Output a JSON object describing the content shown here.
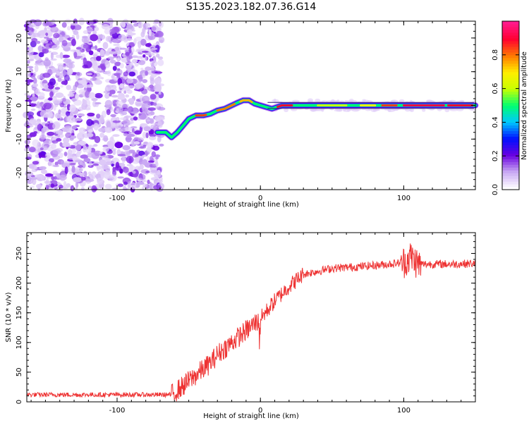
{
  "figure": {
    "title": "S135.2023.182.07.36.G14"
  },
  "chart_data": [
    {
      "type": "heatmap",
      "xlabel": "Height of straight line (km)",
      "ylabel": "Frequency (Hz)",
      "xlim": [
        -163,
        150
      ],
      "ylim": [
        -25,
        25
      ],
      "xticks": [
        -100,
        0,
        100
      ],
      "yticks": [
        -20,
        -10,
        0,
        10,
        20
      ],
      "colorbar": {
        "label": "Normalized spectral amplitude",
        "range": [
          0,
          1
        ],
        "ticks": [
          0.0,
          0.2,
          0.4,
          0.6,
          0.8
        ],
        "colormap": [
          "#ffffff",
          "#c9a9f3",
          "#6a00e0",
          "#0010ff",
          "#00c8ff",
          "#00ff70",
          "#c8ff00",
          "#ffee00",
          "#ff7a00",
          "#ff0030",
          "#ff1a8c"
        ]
      },
      "signal_track": {
        "x": [
          -72,
          -66,
          -62,
          -58,
          -54,
          -50,
          -45,
          -40,
          -35,
          -30,
          -25,
          -20,
          -16,
          -12,
          -8,
          -4,
          0,
          4,
          8,
          15,
          30,
          60,
          90,
          120,
          150
        ],
        "freq": [
          -8,
          -8,
          -9.5,
          -8,
          -6,
          -4,
          -3,
          -3,
          -2.5,
          -1.5,
          -1,
          0,
          0.8,
          1.5,
          1.5,
          0.5,
          0,
          -0.5,
          -1,
          0,
          0,
          0,
          0,
          0,
          0
        ]
      }
    },
    {
      "type": "line",
      "xlabel": "Height of straight line (km)",
      "ylabel": "SNR (10 * v/v)",
      "xlim": [
        -163,
        150
      ],
      "ylim": [
        0,
        285
      ],
      "xticks": [
        -100,
        0,
        100
      ],
      "yticks": [
        0,
        50,
        100,
        150,
        200,
        250
      ],
      "color": "#ee3333",
      "trend": {
        "x": [
          -163,
          -62,
          -55,
          -45,
          -35,
          -30,
          -20,
          -10,
          0,
          10,
          20,
          30,
          50,
          70,
          90,
          100,
          105,
          110,
          130,
          150
        ],
        "y": [
          12,
          12,
          25,
          45,
          65,
          80,
          100,
          120,
          140,
          170,
          195,
          215,
          225,
          228,
          232,
          235,
          245,
          232,
          232,
          233
        ]
      }
    }
  ]
}
